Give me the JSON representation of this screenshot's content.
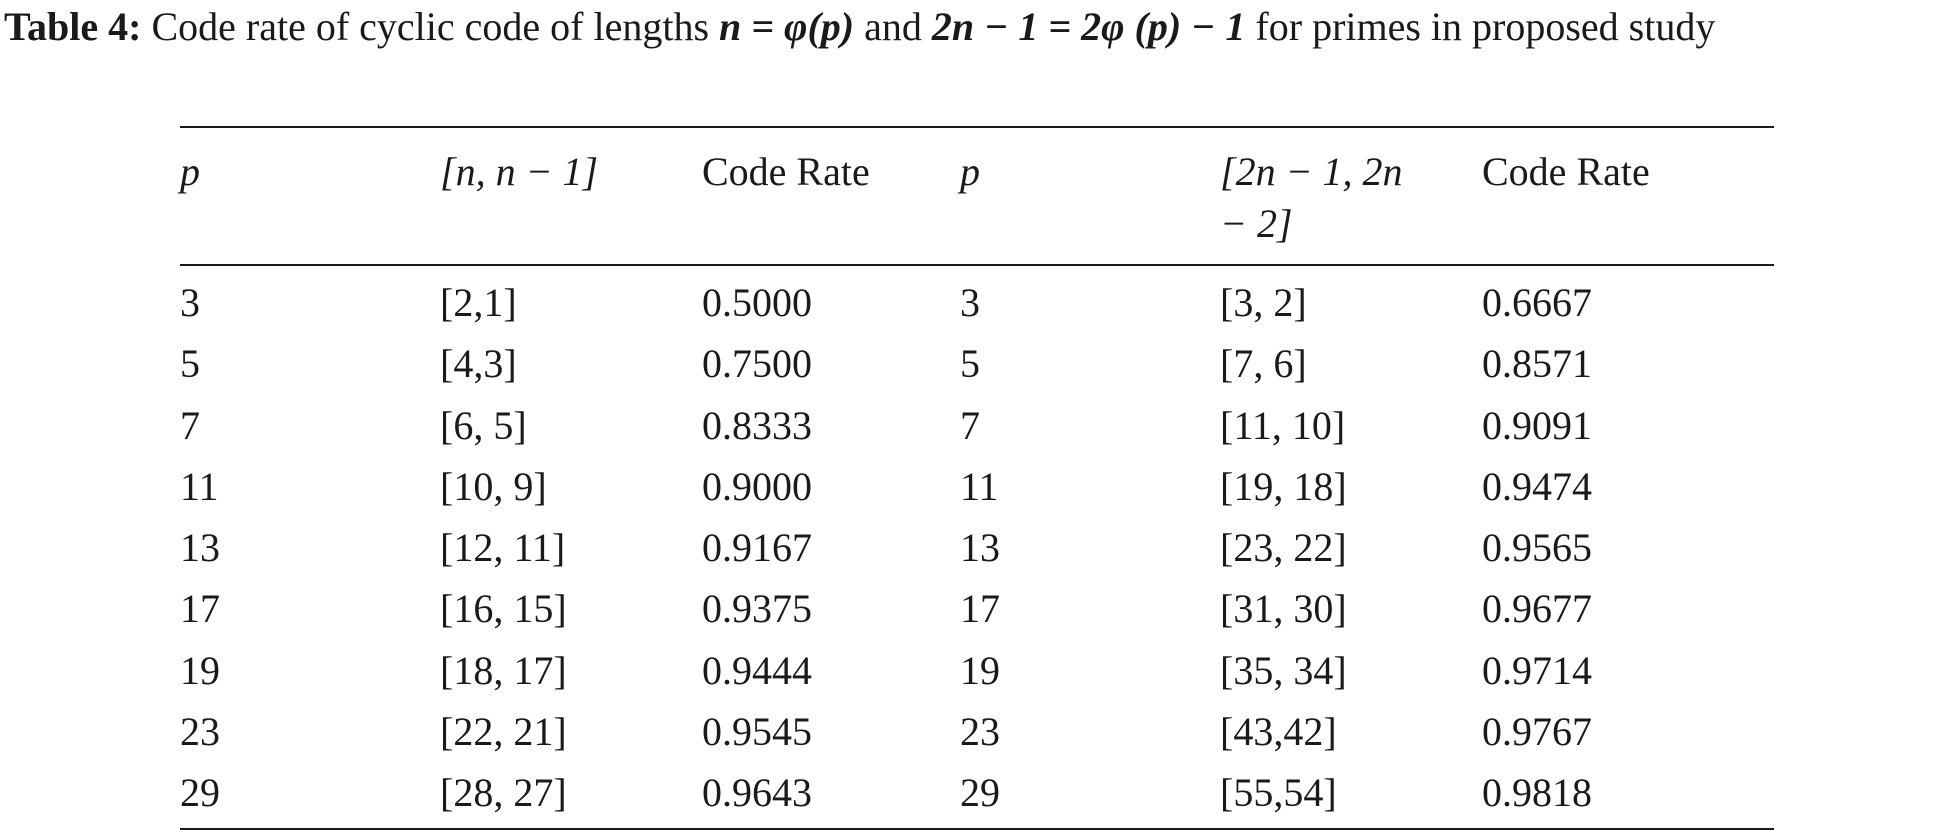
{
  "caption": {
    "label": "Table 4:",
    "text_1": " Code rate of cyclic code of lengths ",
    "n_eq": "n = φ(p)",
    "text_2": " and ",
    "expr_2": "2n − 1 = 2φ (p) − 1",
    "text_3": " for primes in proposed study"
  },
  "table": {
    "headers": [
      "p",
      "[n, n − 1]",
      "Code Rate",
      "p",
      "[2n − 1, 2n − 2]",
      "Code Rate"
    ],
    "rows": [
      [
        "3",
        "[2,1]",
        "0.5000",
        "3",
        "[3, 2]",
        "0.6667"
      ],
      [
        "5",
        "[4,3]",
        "0.7500",
        "5",
        "[7, 6]",
        "0.8571"
      ],
      [
        "7",
        "[6, 5]",
        "0.8333",
        "7",
        "[11, 10]",
        "0.9091"
      ],
      [
        "11",
        "[10, 9]",
        "0.9000",
        "11",
        "[19, 18]",
        "0.9474"
      ],
      [
        "13",
        "[12, 11]",
        "0.9167",
        "13",
        "[23, 22]",
        "0.9565"
      ],
      [
        "17",
        "[16, 15]",
        "0.9375",
        "17",
        "[31, 30]",
        "0.9677"
      ],
      [
        "19",
        "[18, 17]",
        "0.9444",
        "19",
        "[35, 34]",
        "0.9714"
      ],
      [
        "23",
        "[22, 21]",
        "0.9545",
        "23",
        "[43,42]",
        "0.9767"
      ],
      [
        "29",
        "[28, 27]",
        "0.9643",
        "29",
        "[55,54]",
        "0.9818"
      ]
    ]
  }
}
